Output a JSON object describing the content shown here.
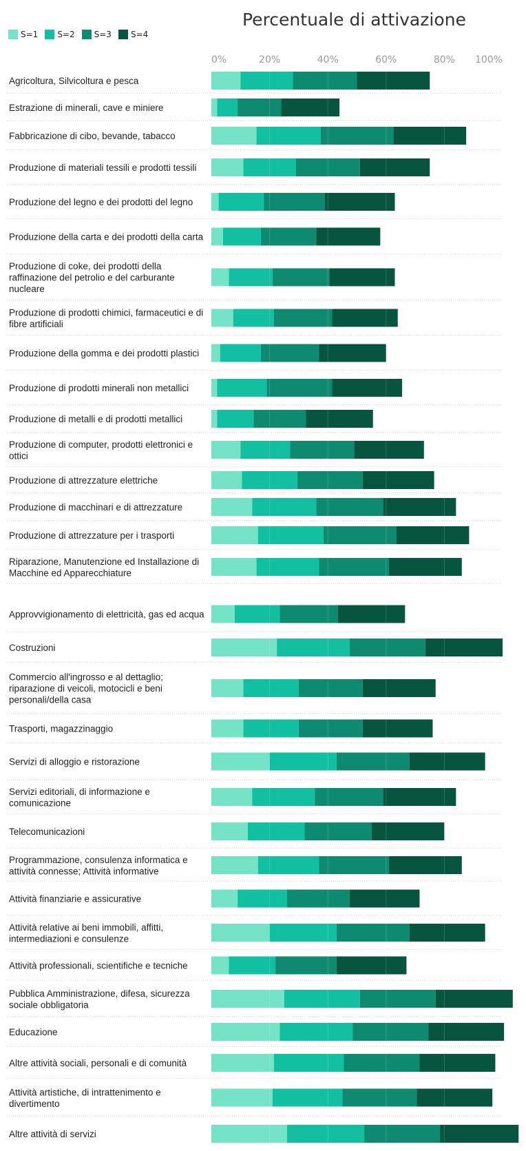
{
  "chart_data": {
    "type": "bar",
    "orientation": "horizontal",
    "stacked": true,
    "title": "Percentuale di attivazione",
    "xlim": [
      0,
      100
    ],
    "x_ticks": [
      "0%",
      "20%",
      "40%",
      "60%",
      "80%",
      "100%"
    ],
    "legend_position": "top-left",
    "grid": true,
    "series": [
      {
        "name": "S=1",
        "color": "#74e3c6"
      },
      {
        "name": "S=2",
        "color": "#12bfa0"
      },
      {
        "name": "S=3",
        "color": "#0d8a6f"
      },
      {
        "name": "S=4",
        "color": "#07553f"
      }
    ],
    "categories": [
      {
        "label": "Agricoltura, Silvicoltura e pesca",
        "values": [
          10,
          18,
          22,
          25
        ]
      },
      {
        "label": "Estrazione di minerali, cave e miniere",
        "values": [
          2,
          7,
          15,
          20
        ]
      },
      {
        "label": "Fabbricazione di cibo, bevande, tabacco",
        "values": [
          15.5,
          22,
          25,
          25
        ]
      },
      {
        "label": "Produzione di materiali tessili e prodotti tessili",
        "values": [
          11,
          18,
          22,
          24
        ]
      },
      {
        "label": "Produzione del legno e dei prodotti del legno",
        "values": [
          2.5,
          15.5,
          21,
          24
        ]
      },
      {
        "label": "Produzione della carta e dei prodotti della carta",
        "values": [
          4,
          13,
          19,
          22
        ]
      },
      {
        "label": "Produzione di coke, dei prodotti della raffinazione del petrolio e del carburante nucleare",
        "values": [
          6,
          15,
          19.5,
          22.5
        ]
      },
      {
        "label": "Produzione di prodotti chimici, farmaceutici e di fibre artificiali",
        "values": [
          7.5,
          14,
          20,
          22.5
        ]
      },
      {
        "label": "Produzione della gomma e dei prodotti plastici",
        "values": [
          3,
          14,
          20,
          23
        ]
      },
      {
        "label": "Produzione di prodotti minerali non metallici",
        "values": [
          2,
          17,
          22.5,
          24
        ]
      },
      {
        "label": "Produzione di metalli e di prodotti metallici",
        "values": [
          2,
          12.5,
          18,
          23
        ]
      },
      {
        "label": "Produzione di computer, prodotti elettronici e ottici",
        "values": [
          10,
          17,
          22,
          24
        ]
      },
      {
        "label": "Produzione di attrezzature elettriche",
        "values": [
          10.5,
          19,
          22.5,
          24.5
        ]
      },
      {
        "label": "Produzione di macchinari e di attrezzature",
        "values": [
          14,
          22,
          23,
          25
        ]
      },
      {
        "label": "Produzione di attrezzature per i trasporti",
        "values": [
          16,
          22.5,
          25,
          25
        ]
      },
      {
        "label": "Riparazione, Manutenzione ed Installazione di Macchine ed Apparecchiature",
        "values": [
          15.5,
          21.5,
          24,
          25
        ]
      },
      {
        "label": "Approvvigionamento di elettricità, gas ed acqua",
        "values": [
          8,
          15.5,
          20,
          23
        ]
      },
      {
        "label": "Costruzioni",
        "values": [
          22.5,
          25,
          26,
          26.5
        ]
      },
      {
        "label": "Commercio all'ingrosso e al dettaglio; riparazione di veicoli, motocicli e beni personali/della casa",
        "values": [
          11,
          19,
          22,
          25
        ]
      },
      {
        "label": "Trasporti, magazzinaggio",
        "values": [
          11,
          19,
          22,
          24
        ]
      },
      {
        "label": "Servizi di alloggio e ristorazione",
        "values": [
          20,
          23,
          25,
          26
        ]
      },
      {
        "label": "Servizi editoriali, di informazione e comunicazione",
        "values": [
          14,
          21.5,
          23.5,
          25
        ]
      },
      {
        "label": "Telecomunicazioni",
        "values": [
          12.5,
          19.5,
          23,
          25
        ]
      },
      {
        "label": "Programmazione, consulenza informatica e attività connesse; Attività informative",
        "values": [
          16,
          21,
          24,
          25
        ]
      },
      {
        "label": "Attività finanziarie e assicurative",
        "values": [
          9,
          17,
          21.5,
          24
        ]
      },
      {
        "label": "Attività relative ai beni immobili, affitti, intermediazioni e consulenze",
        "values": [
          20,
          23,
          25,
          26
        ]
      },
      {
        "label": "Attività professionali, scientifiche e tecniche",
        "values": [
          6,
          16,
          21,
          24
        ]
      },
      {
        "label": "Pubblica Amministrazione, difesa, sicurezza sociale obbligatoria",
        "values": [
          25,
          26,
          26,
          26.5
        ]
      },
      {
        "label": "Educazione",
        "values": [
          23.5,
          25,
          26,
          26
        ]
      },
      {
        "label": "Altre attività sociali, personali e di comunità",
        "values": [
          21.5,
          24,
          26,
          26
        ]
      },
      {
        "label": "Attività artistiche, di intrattenimento e divertimento",
        "values": [
          21,
          24,
          25.5,
          26
        ]
      },
      {
        "label": "Altre attività di servizi",
        "values": [
          26,
          26.5,
          26,
          27
        ]
      }
    ]
  }
}
